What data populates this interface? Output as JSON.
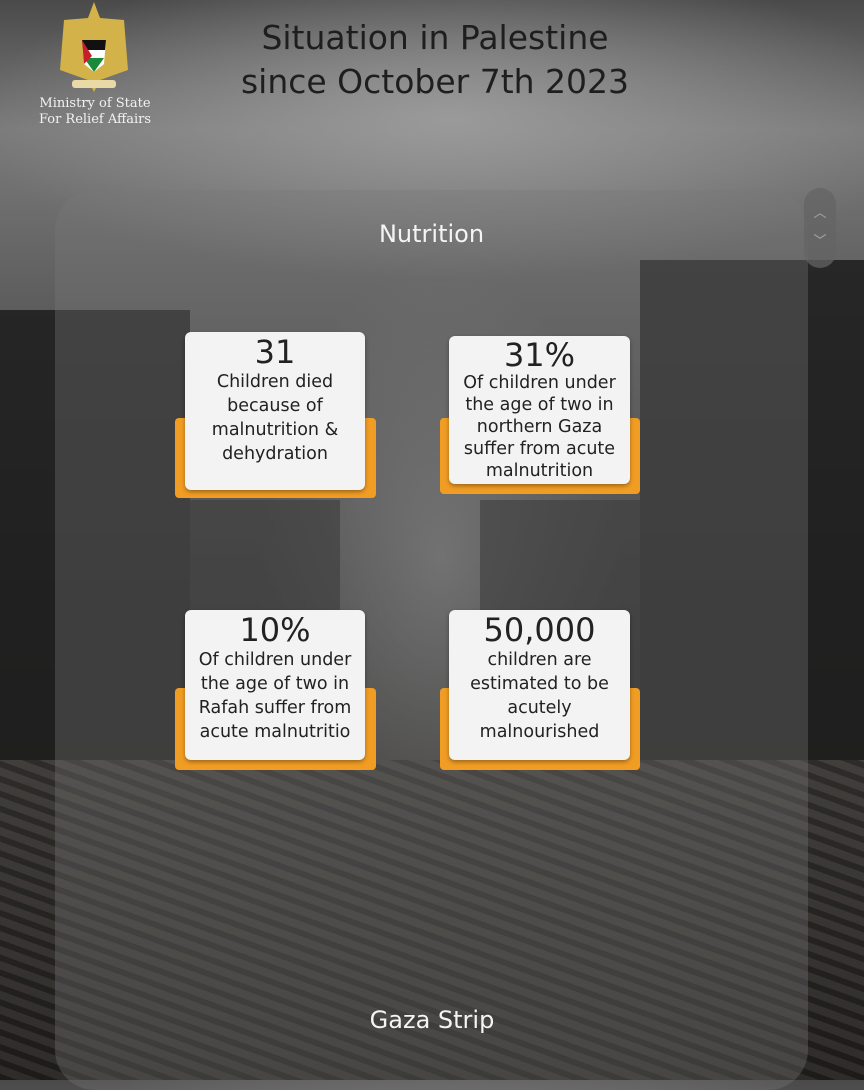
{
  "header": {
    "title": "Situation in Palestine\nsince October 7th 2023",
    "organization": "Ministry of State\nFor Relief Affairs",
    "logo": "palestinian-eagle-emblem"
  },
  "section": {
    "title": "Nutrition"
  },
  "scroll_control": {
    "up_icon": "chevron-up-icon",
    "down_icon": "chevron-down-icon"
  },
  "stats": [
    {
      "value": "31",
      "description": "Children died\nbecause of\nmalnutrition &\ndehydration"
    },
    {
      "value": "31%",
      "description": "Of children under\nthe age of two in\nnorthern Gaza\nsuffer from acute\nmalnutrition"
    },
    {
      "value": "10%",
      "description": "Of children under\nthe age of two in\nRafah suffer from\nacute malnutritio"
    },
    {
      "value": "50,000",
      "description": "children are\nestimated to be\nacutely\nmalnourished"
    }
  ],
  "footer": {
    "label": "Gaza Strip"
  },
  "colors": {
    "accent": "#f19d24",
    "card": "#f3f3f3"
  }
}
